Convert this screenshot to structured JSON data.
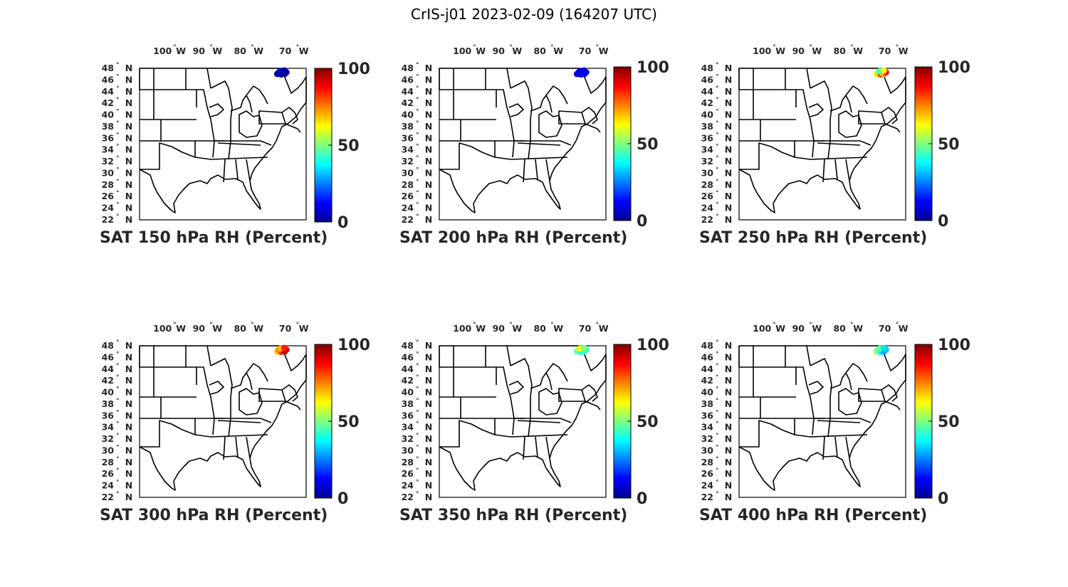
{
  "figure": {
    "title": "CrIS-j01 2023-02-09 (164207 UTC)"
  },
  "chart_data": {
    "type": "map-scatter",
    "colormap": "jet",
    "color_range": [
      0,
      100
    ],
    "colorbar_ticks": [
      "0",
      "50",
      "100"
    ],
    "lon_ticks": [
      "100",
      "90",
      "80",
      "70"
    ],
    "lon_hemisphere": "W",
    "lat_ticks": [
      "22",
      "24",
      "26",
      "28",
      "30",
      "32",
      "34",
      "36",
      "38",
      "40",
      "42",
      "44",
      "46",
      "48"
    ],
    "lat_hemisphere": "N",
    "degree_symbol": "°",
    "lon_range": [
      -105,
      -67
    ],
    "lat_range": [
      22,
      49
    ],
    "panels": [
      {
        "title": "SAT 150 hPa RH (Percent)",
        "points": [
          {
            "lon": -73.6,
            "lat": 48.0,
            "value": 3
          },
          {
            "lon": -73.2,
            "lat": 48.3,
            "value": 4
          },
          {
            "lon": -72.7,
            "lat": 47.9,
            "value": 2
          },
          {
            "lon": -72.3,
            "lat": 48.2,
            "value": 5
          },
          {
            "lon": -71.9,
            "lat": 48.0,
            "value": 3
          },
          {
            "lon": -71.5,
            "lat": 48.3,
            "value": 4
          },
          {
            "lon": -72.9,
            "lat": 48.5,
            "value": 6
          },
          {
            "lon": -72.0,
            "lat": 48.6,
            "value": 3
          }
        ]
      },
      {
        "title": "SAT 200 hPa RH (Percent)",
        "points": [
          {
            "lon": -73.6,
            "lat": 48.0,
            "value": 8
          },
          {
            "lon": -73.2,
            "lat": 48.3,
            "value": 10
          },
          {
            "lon": -72.7,
            "lat": 47.9,
            "value": 9
          },
          {
            "lon": -72.3,
            "lat": 48.2,
            "value": 12
          },
          {
            "lon": -71.9,
            "lat": 48.0,
            "value": 10
          },
          {
            "lon": -71.5,
            "lat": 48.3,
            "value": 11
          },
          {
            "lon": -72.9,
            "lat": 48.5,
            "value": 9
          },
          {
            "lon": -72.0,
            "lat": 48.6,
            "value": 10
          }
        ]
      },
      {
        "title": "SAT 250 hPa RH (Percent)",
        "points": [
          {
            "lon": -73.6,
            "lat": 48.0,
            "value": 65
          },
          {
            "lon": -73.2,
            "lat": 48.3,
            "value": 50
          },
          {
            "lon": -72.7,
            "lat": 47.9,
            "value": 80
          },
          {
            "lon": -72.3,
            "lat": 48.2,
            "value": 58
          },
          {
            "lon": -71.9,
            "lat": 48.0,
            "value": 70
          },
          {
            "lon": -71.5,
            "lat": 48.3,
            "value": 88
          },
          {
            "lon": -72.9,
            "lat": 48.5,
            "value": 45
          },
          {
            "lon": -72.0,
            "lat": 48.6,
            "value": 62
          }
        ]
      },
      {
        "title": "SAT 300 hPa RH (Percent)",
        "points": [
          {
            "lon": -73.6,
            "lat": 48.0,
            "value": 68
          },
          {
            "lon": -73.2,
            "lat": 48.3,
            "value": 75
          },
          {
            "lon": -72.7,
            "lat": 47.9,
            "value": 82
          },
          {
            "lon": -72.3,
            "lat": 48.2,
            "value": 90
          },
          {
            "lon": -71.9,
            "lat": 48.0,
            "value": 95
          },
          {
            "lon": -71.5,
            "lat": 48.3,
            "value": 92
          },
          {
            "lon": -72.9,
            "lat": 48.5,
            "value": 70
          },
          {
            "lon": -72.0,
            "lat": 48.6,
            "value": 85
          }
        ]
      },
      {
        "title": "SAT 350 hPa RH (Percent)",
        "points": [
          {
            "lon": -73.6,
            "lat": 48.0,
            "value": 48
          },
          {
            "lon": -73.2,
            "lat": 48.3,
            "value": 55
          },
          {
            "lon": -72.7,
            "lat": 47.9,
            "value": 40
          },
          {
            "lon": -72.3,
            "lat": 48.2,
            "value": 38
          },
          {
            "lon": -71.9,
            "lat": 48.0,
            "value": 45
          },
          {
            "lon": -71.5,
            "lat": 48.3,
            "value": 42
          },
          {
            "lon": -72.9,
            "lat": 48.5,
            "value": 60
          },
          {
            "lon": -72.0,
            "lat": 48.6,
            "value": 50
          }
        ]
      },
      {
        "title": "SAT 400 hPa RH (Percent)",
        "points": [
          {
            "lon": -73.6,
            "lat": 48.0,
            "value": 52
          },
          {
            "lon": -73.2,
            "lat": 48.3,
            "value": 45
          },
          {
            "lon": -72.7,
            "lat": 47.9,
            "value": 38
          },
          {
            "lon": -72.3,
            "lat": 48.2,
            "value": 30
          },
          {
            "lon": -71.9,
            "lat": 48.0,
            "value": 28
          },
          {
            "lon": -71.5,
            "lat": 48.3,
            "value": 32
          },
          {
            "lon": -72.9,
            "lat": 48.5,
            "value": 48
          },
          {
            "lon": -72.0,
            "lat": 48.6,
            "value": 35
          }
        ]
      }
    ]
  }
}
